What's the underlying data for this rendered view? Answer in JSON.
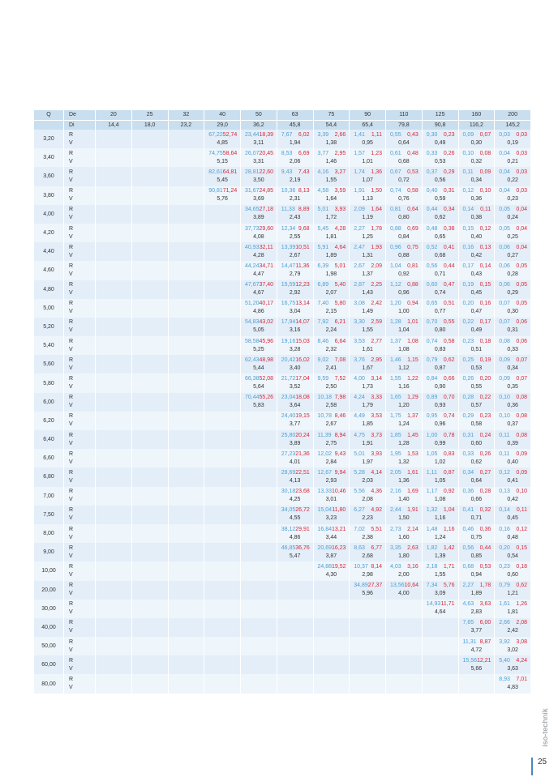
{
  "header": {
    "q_label": "Q",
    "de_label": "De",
    "di_label": "Di",
    "de": [
      "20",
      "25",
      "32",
      "40",
      "50",
      "63",
      "75",
      "90",
      "110",
      "125",
      "160",
      "200"
    ],
    "di": [
      "14,4",
      "18,0",
      "23,2",
      "29,0",
      "36,2",
      "45,8",
      "54,4",
      "65,4",
      "79,8",
      "90,8",
      "116,2",
      "145,2"
    ]
  },
  "row_labels": {
    "r": "R",
    "v": "V"
  },
  "colors": {
    "r_value_1": "#4d9fd6",
    "r_value_2": "#d8283c",
    "header_bg": "#c9dff0",
    "row_bg": "#e4eef8"
  },
  "rows": [
    {
      "q": "3,20",
      "cells": [
        null,
        null,
        null,
        [
          "67,22",
          "52,74",
          "4,85"
        ],
        [
          "23,44",
          "18,39",
          "3,11"
        ],
        [
          "7,67",
          "6,02",
          "1,94"
        ],
        [
          "3,39",
          "2,66",
          "1,38"
        ],
        [
          "1,41",
          "1,11",
          "0,95"
        ],
        [
          "0,55",
          "0,43",
          "0,64"
        ],
        [
          "0,30",
          "0,23",
          "0,49"
        ],
        [
          "0,09",
          "0,07",
          "0,30"
        ],
        [
          "0,03",
          "0,03",
          "0,19"
        ]
      ]
    },
    {
      "q": "3,40",
      "cells": [
        null,
        null,
        null,
        [
          "74,75",
          "58,64",
          "5,15"
        ],
        [
          "26,07",
          "20,45",
          "3,31"
        ],
        [
          "8,53",
          "6,69",
          "2,06"
        ],
        [
          "3,77",
          "2,95",
          "1,46"
        ],
        [
          "1,57",
          "1,23",
          "1,01"
        ],
        [
          "0,61",
          "0,48",
          "0,68"
        ],
        [
          "0,33",
          "0,26",
          "0,53"
        ],
        [
          "0,10",
          "0,08",
          "0,32"
        ],
        [
          "0,04",
          "0,03",
          "0,21"
        ]
      ]
    },
    {
      "q": "3,60",
      "cells": [
        null,
        null,
        null,
        [
          "82,61",
          "64,81",
          "5,45"
        ],
        [
          "28,81",
          "22,60",
          "3,50"
        ],
        [
          "9,43",
          "7,43",
          "2,19"
        ],
        [
          "4,16",
          "3,27",
          "1,55"
        ],
        [
          "1,74",
          "1,36",
          "1,07"
        ],
        [
          "0,67",
          "0,53",
          "0,72"
        ],
        [
          "0,37",
          "0,29",
          "0,56"
        ],
        [
          "0,11",
          "0,09",
          "0,34"
        ],
        [
          "0,04",
          "0,03",
          "0,22"
        ]
      ]
    },
    {
      "q": "3,80",
      "cells": [
        null,
        null,
        null,
        [
          "90,81",
          "71,24",
          "5,76"
        ],
        [
          "31,67",
          "24,85",
          "3,69"
        ],
        [
          "10,36",
          "8,13",
          "2,31"
        ],
        [
          "4,58",
          "3,59",
          "1,64"
        ],
        [
          "1,91",
          "1,50",
          "1,13"
        ],
        [
          "0,74",
          "0,58",
          "0,76"
        ],
        [
          "0,40",
          "0,31",
          "0,59"
        ],
        [
          "0,12",
          "0,10",
          "0,36"
        ],
        [
          "0,04",
          "0,03",
          "0,23"
        ]
      ]
    },
    {
      "q": "4,00",
      "cells": [
        null,
        null,
        null,
        null,
        [
          "34,65",
          "27,18",
          "3,89"
        ],
        [
          "11,33",
          "8,89",
          "2,43"
        ],
        [
          "5,01",
          "3,93",
          "1,72"
        ],
        [
          "2,09",
          "1,64",
          "1,19"
        ],
        [
          "0,81",
          "0,64",
          "0,80"
        ],
        [
          "0,44",
          "0,34",
          "0,62"
        ],
        [
          "0,14",
          "0,11",
          "0,38"
        ],
        [
          "0,05",
          "0,04",
          "0,24"
        ]
      ]
    },
    {
      "q": "4,20",
      "cells": [
        null,
        null,
        null,
        null,
        [
          "37,73",
          "29,60",
          "4,08"
        ],
        [
          "12,34",
          "9,68",
          "2,55"
        ],
        [
          "5,45",
          "4,28",
          "1,81"
        ],
        [
          "2,27",
          "1,78",
          "1,25"
        ],
        [
          "0,88",
          "0,69",
          "0,84"
        ],
        [
          "0,48",
          "0,38",
          "0,65"
        ],
        [
          "0,15",
          "0,12",
          "0,40"
        ],
        [
          "0,05",
          "0,04",
          "0,25"
        ]
      ]
    },
    {
      "q": "4,40",
      "cells": [
        null,
        null,
        null,
        null,
        [
          "40,93",
          "32,11",
          "4,28"
        ],
        [
          "13,39",
          "10,51",
          "2,67"
        ],
        [
          "5,91",
          "4,64",
          "1,89"
        ],
        [
          "2,47",
          "1,93",
          "1,31"
        ],
        [
          "0,96",
          "0,75",
          "0,88"
        ],
        [
          "0,52",
          "0,41",
          "0,68"
        ],
        [
          "0,16",
          "0,13",
          "0,42"
        ],
        [
          "0,06",
          "0,04",
          "0,27"
        ]
      ]
    },
    {
      "q": "4,60",
      "cells": [
        null,
        null,
        null,
        null,
        [
          "44,24",
          "34,71",
          "4,47"
        ],
        [
          "14,47",
          "11,36",
          "2,79"
        ],
        [
          "6,39",
          "5,01",
          "1,98"
        ],
        [
          "2,67",
          "2,09",
          "1,37"
        ],
        [
          "1,04",
          "0,81",
          "0,92"
        ],
        [
          "0,56",
          "0,44",
          "0,71"
        ],
        [
          "0,17",
          "0,14",
          "0,43"
        ],
        [
          "0,06",
          "0,05",
          "0,28"
        ]
      ]
    },
    {
      "q": "4,80",
      "cells": [
        null,
        null,
        null,
        null,
        [
          "47,67",
          "37,40",
          "4,67"
        ],
        [
          "15,59",
          "12,23",
          "2,92"
        ],
        [
          "6,89",
          "5,40",
          "2,07"
        ],
        [
          "2,87",
          "2,25",
          "1,43"
        ],
        [
          "1,12",
          "0,88",
          "0,96"
        ],
        [
          "0,60",
          "0,47",
          "0,74"
        ],
        [
          "0,19",
          "0,15",
          "0,45"
        ],
        [
          "0,06",
          "0,05",
          "0,29"
        ]
      ]
    },
    {
      "q": "5,00",
      "cells": [
        null,
        null,
        null,
        null,
        [
          "51,20",
          "40,17",
          "4,86"
        ],
        [
          "16,75",
          "13,14",
          "3,04"
        ],
        [
          "7,40",
          "5,80",
          "2,15"
        ],
        [
          "3,08",
          "2,42",
          "1,49"
        ],
        [
          "1,20",
          "0,94",
          "1,00"
        ],
        [
          "0,65",
          "0,51",
          "0,77"
        ],
        [
          "0,20",
          "0,16",
          "0,47"
        ],
        [
          "0,07",
          "0,05",
          "0,30"
        ]
      ]
    },
    {
      "q": "5,20",
      "cells": [
        null,
        null,
        null,
        null,
        [
          "54,83",
          "43,02",
          "5,05"
        ],
        [
          "17,94",
          "14,07",
          "3,16"
        ],
        [
          "7,92",
          "6,21",
          "2,24"
        ],
        [
          "3,30",
          "2,59",
          "1,55"
        ],
        [
          "1,28",
          "1,01",
          "1,04"
        ],
        [
          "0,70",
          "0,55",
          "0,80"
        ],
        [
          "0,22",
          "0,17",
          "0,49"
        ],
        [
          "0,07",
          "0,06",
          "0,31"
        ]
      ]
    },
    {
      "q": "5,40",
      "cells": [
        null,
        null,
        null,
        null,
        [
          "58,58",
          "45,96",
          "5,25"
        ],
        [
          "19,16",
          "15,03",
          "3,28"
        ],
        [
          "8,46",
          "6,64",
          "2,32"
        ],
        [
          "3,53",
          "2,77",
          "1,61"
        ],
        [
          "1,37",
          "1,08",
          "1,08"
        ],
        [
          "0,74",
          "0,58",
          "0,83"
        ],
        [
          "0,23",
          "0,18",
          "0,51"
        ],
        [
          "0,08",
          "0,06",
          "0,33"
        ]
      ]
    },
    {
      "q": "5,60",
      "cells": [
        null,
        null,
        null,
        null,
        [
          "62,43",
          "48,98",
          "5,44"
        ],
        [
          "20,42",
          "16,02",
          "3,40"
        ],
        [
          "9,02",
          "7,08",
          "2,41"
        ],
        [
          "3,76",
          "2,95",
          "1,67"
        ],
        [
          "1,46",
          "1,15",
          "1,12"
        ],
        [
          "0,79",
          "0,62",
          "0,87"
        ],
        [
          "0,25",
          "0,19",
          "0,53"
        ],
        [
          "0,09",
          "0,07",
          "0,34"
        ]
      ]
    },
    {
      "q": "5,80",
      "cells": [
        null,
        null,
        null,
        null,
        [
          "66,38",
          "52,08",
          "5,64"
        ],
        [
          "21,72",
          "17,04",
          "3,52"
        ],
        [
          "9,59",
          "7,52",
          "2,50"
        ],
        [
          "4,00",
          "3,14",
          "1,73"
        ],
        [
          "1,55",
          "1,22",
          "1,16"
        ],
        [
          "0,84",
          "0,66",
          "0,90"
        ],
        [
          "0,26",
          "0,20",
          "0,55"
        ],
        [
          "0,09",
          "0,07",
          "0,35"
        ]
      ]
    },
    {
      "q": "6,00",
      "cells": [
        null,
        null,
        null,
        null,
        [
          "70,44",
          "55,26",
          "5,83"
        ],
        [
          "23,04",
          "18,08",
          "3,64"
        ],
        [
          "10,18",
          "7,98",
          "2,58"
        ],
        [
          "4,24",
          "3,33",
          "1,79"
        ],
        [
          "1,65",
          "1,29",
          "1,20"
        ],
        [
          "0,89",
          "0,70",
          "0,93"
        ],
        [
          "0,28",
          "0,22",
          "0,57"
        ],
        [
          "0,10",
          "0,08",
          "0,36"
        ]
      ]
    },
    {
      "q": "6,20",
      "cells": [
        null,
        null,
        null,
        null,
        null,
        [
          "24,40",
          "19,15",
          "3,77"
        ],
        [
          "10,78",
          "8,46",
          "2,67"
        ],
        [
          "4,49",
          "3,53",
          "1,85"
        ],
        [
          "1,75",
          "1,37",
          "1,24"
        ],
        [
          "0,95",
          "0,74",
          "0,96"
        ],
        [
          "0,29",
          "0,23",
          "0,58"
        ],
        [
          "0,10",
          "0,08",
          "0,37"
        ]
      ]
    },
    {
      "q": "6,40",
      "cells": [
        null,
        null,
        null,
        null,
        null,
        [
          "25,80",
          "20,24",
          "3,89"
        ],
        [
          "11,39",
          "8,94",
          "2,75"
        ],
        [
          "4,75",
          "3,73",
          "1,91"
        ],
        [
          "1,85",
          "1,45",
          "1,28"
        ],
        [
          "1,00",
          "0,78",
          "0,99"
        ],
        [
          "0,31",
          "0,24",
          "0,60"
        ],
        [
          "0,11",
          "0,08",
          "0,39"
        ]
      ]
    },
    {
      "q": "6,60",
      "cells": [
        null,
        null,
        null,
        null,
        null,
        [
          "27,23",
          "21,36",
          "4,01"
        ],
        [
          "12,02",
          "9,43",
          "2,84"
        ],
        [
          "5,01",
          "3,93",
          "1,97"
        ],
        [
          "1,95",
          "1,53",
          "1,32"
        ],
        [
          "1,05",
          "0,83",
          "1,02"
        ],
        [
          "0,33",
          "0,26",
          "0,62"
        ],
        [
          "0,11",
          "0,09",
          "0,40"
        ]
      ]
    },
    {
      "q": "6,80",
      "cells": [
        null,
        null,
        null,
        null,
        null,
        [
          "28,69",
          "22,51",
          "4,13"
        ],
        [
          "12,67",
          "9,94",
          "2,93"
        ],
        [
          "5,28",
          "4,14",
          "2,03"
        ],
        [
          "2,05",
          "1,61",
          "1,36"
        ],
        [
          "1,11",
          "0,87",
          "1,05"
        ],
        [
          "0,34",
          "0,27",
          "0,64"
        ],
        [
          "0,12",
          "0,09",
          "0,41"
        ]
      ]
    },
    {
      "q": "7,00",
      "cells": [
        null,
        null,
        null,
        null,
        null,
        [
          "30,18",
          "23,68",
          "4,25"
        ],
        [
          "13,33",
          "10,46",
          "3,01"
        ],
        [
          "5,56",
          "4,36",
          "2,08"
        ],
        [
          "2,16",
          "1,69",
          "1,40"
        ],
        [
          "1,17",
          "0,92",
          "1,08"
        ],
        [
          "0,36",
          "0,28",
          "0,66"
        ],
        [
          "0,13",
          "0,10",
          "0,42"
        ]
      ]
    },
    {
      "q": "7,50",
      "cells": [
        null,
        null,
        null,
        null,
        null,
        [
          "34,05",
          "26,72",
          "4,55"
        ],
        [
          "15,04",
          "11,80",
          "3,23"
        ],
        [
          "6,27",
          "4,92",
          "2,23"
        ],
        [
          "2,44",
          "1,91",
          "1,50"
        ],
        [
          "1,32",
          "1,04",
          "1,16"
        ],
        [
          "0,41",
          "0,32",
          "0,71"
        ],
        [
          "0,14",
          "0,11",
          "0,45"
        ]
      ]
    },
    {
      "q": "8,00",
      "cells": [
        null,
        null,
        null,
        null,
        null,
        [
          "38,12",
          "29,91",
          "4,86"
        ],
        [
          "16,84",
          "13,21",
          "3,44"
        ],
        [
          "7,02",
          "5,51",
          "2,38"
        ],
        [
          "2,73",
          "2,14",
          "1,60"
        ],
        [
          "1,48",
          "1,16",
          "1,24"
        ],
        [
          "0,46",
          "0,36",
          "0,75"
        ],
        [
          "0,16",
          "0,12",
          "0,48"
        ]
      ]
    },
    {
      "q": "9,00",
      "cells": [
        null,
        null,
        null,
        null,
        null,
        [
          "46,85",
          "36,76",
          "5,47"
        ],
        [
          "20,69",
          "16,23",
          "3,87"
        ],
        [
          "8,63",
          "6,77",
          "2,68"
        ],
        [
          "3,35",
          "2,63",
          "1,80"
        ],
        [
          "1,82",
          "1,42",
          "1,39"
        ],
        [
          "0,56",
          "0,44",
          "0,85"
        ],
        [
          "0,20",
          "0,15",
          "0,54"
        ]
      ]
    },
    {
      "q": "10,00",
      "cells": [
        null,
        null,
        null,
        null,
        null,
        null,
        [
          "24,88",
          "19,52",
          "4,30"
        ],
        [
          "10,37",
          "8,14",
          "2,98"
        ],
        [
          "4,03",
          "3,16",
          "2,00"
        ],
        [
          "2,18",
          "1,71",
          "1,55"
        ],
        [
          "0,68",
          "0,53",
          "0,94"
        ],
        [
          "0,23",
          "0,18",
          "0,60"
        ]
      ]
    },
    {
      "q": "20,00",
      "cells": [
        null,
        null,
        null,
        null,
        null,
        null,
        null,
        [
          "34,89",
          "27,37",
          "5,96"
        ],
        [
          "13,56",
          "10,64",
          "4,00"
        ],
        [
          "7,34",
          "5,76",
          "3,09"
        ],
        [
          "2,27",
          "1,78",
          "1,89"
        ],
        [
          "0,79",
          "0,62",
          "1,21"
        ]
      ]
    },
    {
      "q": "30,00",
      "cells": [
        null,
        null,
        null,
        null,
        null,
        null,
        null,
        null,
        null,
        [
          "14,93",
          "11,71",
          "4,64"
        ],
        [
          "4,63",
          "3,63",
          "2,83"
        ],
        [
          "1,61",
          "1,26",
          "1,81"
        ]
      ]
    },
    {
      "q": "40,00",
      "cells": [
        null,
        null,
        null,
        null,
        null,
        null,
        null,
        null,
        null,
        null,
        [
          "7,65",
          "6,00",
          "3,77"
        ],
        [
          "2,66",
          "2,08",
          "2,42"
        ]
      ]
    },
    {
      "q": "50,00",
      "cells": [
        null,
        null,
        null,
        null,
        null,
        null,
        null,
        null,
        null,
        null,
        [
          "11,31",
          "8,87",
          "4,72"
        ],
        [
          "3,92",
          "3,08",
          "3,02"
        ]
      ]
    },
    {
      "q": "60,00",
      "cells": [
        null,
        null,
        null,
        null,
        null,
        null,
        null,
        null,
        null,
        null,
        [
          "15,56",
          "12,21",
          "5,66"
        ],
        [
          "5,40",
          "4,24",
          "3,63"
        ]
      ]
    },
    {
      "q": "80,00",
      "cells": [
        null,
        null,
        null,
        null,
        null,
        null,
        null,
        null,
        null,
        null,
        null,
        [
          "8,93",
          "7,01",
          "4,83"
        ]
      ]
    }
  ],
  "footer": {
    "logo": "iso-technik",
    "page_number": "25"
  }
}
